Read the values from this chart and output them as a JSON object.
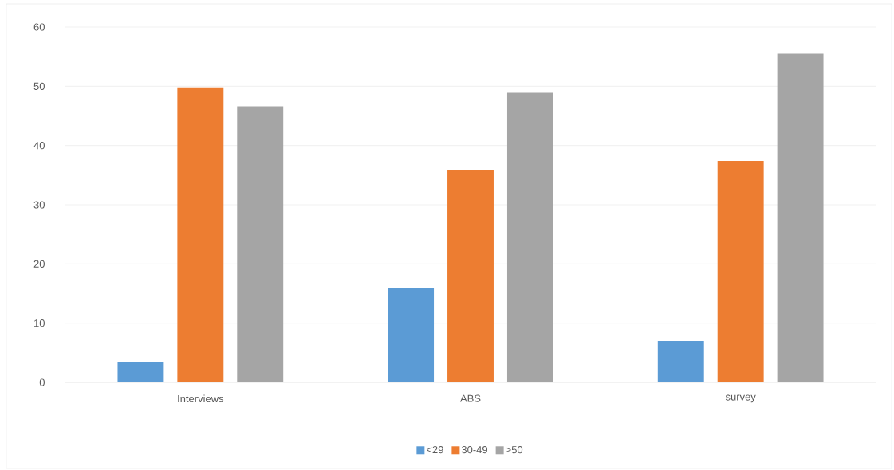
{
  "chart_data": {
    "type": "bar",
    "categories": [
      "Interviews",
      "ABS",
      "survey"
    ],
    "series": [
      {
        "name": "<29",
        "color": "#5b9bd5",
        "values": [
          3.4,
          15.9,
          7.0
        ]
      },
      {
        "name": "30-49",
        "color": "#ed7d31",
        "values": [
          49.8,
          35.9,
          37.4
        ]
      },
      {
        "name": ">50",
        "color": "#a5a5a5",
        "values": [
          46.6,
          48.9,
          55.5
        ]
      }
    ],
    "ylim": [
      0,
      60
    ],
    "yticks": [
      0,
      10,
      20,
      30,
      40,
      50,
      60
    ],
    "grid": "y",
    "legend": "bottom"
  }
}
